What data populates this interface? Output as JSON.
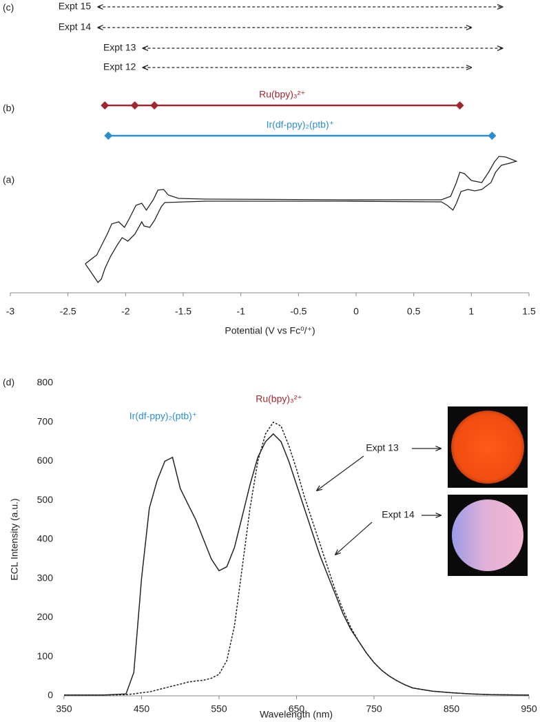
{
  "chart_data": [
    {
      "type": "potential",
      "panel_labels": [
        "(c)",
        "(b)",
        "(a)"
      ],
      "xlabel": "Potential (V vs Fc⁰/⁺)",
      "xlim": [
        -3,
        1.5
      ],
      "xticks": [
        -3,
        -2.5,
        -2,
        -1.5,
        -1,
        -0.5,
        0,
        0.5,
        1,
        1.5
      ],
      "windows": [
        {
          "name": "Expt 15",
          "start": -2.24,
          "end": 1.27
        },
        {
          "name": "Expt 14",
          "start": -2.24,
          "end": 1.0
        },
        {
          "name": "Expt 13",
          "start": -1.85,
          "end": 1.27
        },
        {
          "name": "Expt 12",
          "start": -1.85,
          "end": 1.0
        }
      ],
      "potentials": [
        {
          "name": "Ru(bpy)₃²⁺",
          "color": "#a0262f",
          "values": [
            -2.18,
            -1.92,
            -1.75,
            0.9
          ]
        },
        {
          "name": "Ir(df-ppy)₂(ptb)⁺",
          "color": "#2a8fd0",
          "values": [
            -2.15,
            1.18
          ]
        }
      ],
      "cv": {
        "ylim": [
          0,
          200
        ],
        "color": "#222222",
        "x": [
          -2.35,
          -2.25,
          -2.16,
          -2.12,
          -2.06,
          -2.01,
          -1.97,
          -1.91,
          -1.86,
          -1.82,
          -1.76,
          -1.72,
          -1.67,
          -1.63,
          -1.54,
          -1.3,
          -0.1,
          0.74,
          0.82,
          0.87,
          0.9,
          0.94,
          1.0,
          1.09,
          1.15,
          1.2,
          1.24,
          1.3,
          1.39,
          1.33,
          1.26,
          1.21,
          1.17,
          1.09,
          1.03,
          0.97,
          0.91,
          0.87,
          0.84,
          0.79,
          0.74,
          -0.1,
          -1.3,
          -1.66,
          -1.69,
          -1.75,
          -1.79,
          -1.84,
          -1.86,
          -1.92,
          -1.98,
          -2.03,
          -2.07,
          -2.13,
          -2.18,
          -2.21,
          -2.24,
          -2.28,
          -2.35
        ],
        "y": [
          27,
          40,
          70,
          85,
          88,
          80,
          92,
          112,
          115,
          105,
          120,
          134,
          135,
          127,
          122,
          121,
          120,
          120,
          125,
          145,
          160,
          158,
          148,
          145,
          160,
          175,
          183,
          182,
          176,
          173,
          170,
          160,
          145,
          135,
          133,
          135,
          132,
          115,
          105,
          112,
          117,
          118,
          118,
          116,
          110,
          90,
          80,
          82,
          88,
          70,
          60,
          65,
          55,
          38,
          20,
          5,
          0,
          10,
          27
        ]
      }
    },
    {
      "type": "line",
      "panel_label": "(d)",
      "xlabel": "Wavelength (nm)",
      "ylabel": "ECL Intensity (a.u.)",
      "xlim": [
        350,
        950
      ],
      "xticks": [
        350,
        450,
        550,
        650,
        750,
        850,
        950
      ],
      "ylim": [
        0,
        800
      ],
      "yticks": [
        0,
        100,
        200,
        300,
        400,
        500,
        600,
        700,
        800
      ],
      "x": [
        350,
        400,
        430,
        440,
        450,
        460,
        470,
        480,
        490,
        500,
        510,
        520,
        530,
        540,
        550,
        560,
        570,
        580,
        590,
        600,
        610,
        620,
        630,
        640,
        650,
        660,
        670,
        680,
        690,
        700,
        710,
        720,
        730,
        740,
        750,
        760,
        770,
        780,
        790,
        800,
        825,
        850,
        875,
        900,
        950
      ],
      "series": [
        {
          "name": "Expt 13",
          "color": "#222222",
          "line_style": "solid",
          "values": [
            2,
            2,
            5,
            60,
            300,
            480,
            550,
            600,
            610,
            530,
            490,
            450,
            400,
            350,
            320,
            330,
            380,
            460,
            540,
            610,
            650,
            670,
            650,
            600,
            540,
            480,
            420,
            360,
            310,
            260,
            210,
            170,
            140,
            110,
            85,
            65,
            50,
            38,
            28,
            20,
            12,
            8,
            5,
            3,
            2
          ]
        },
        {
          "name": "Expt 14",
          "color": "#222222",
          "line_style": "dashed",
          "values": [
            2,
            2,
            3,
            5,
            8,
            10,
            15,
            20,
            25,
            30,
            35,
            38,
            40,
            45,
            55,
            90,
            180,
            330,
            480,
            600,
            670,
            700,
            690,
            640,
            580,
            510,
            450,
            390,
            330,
            270,
            220,
            175,
            140,
            110,
            85,
            65,
            50,
            38,
            28,
            20,
            12,
            8,
            5,
            3,
            2
          ]
        }
      ],
      "annotations": [
        {
          "text": "Ir(df-ppy)₂(ptb)⁺",
          "color": "#2a8fd0"
        },
        {
          "text": "Ru(bpy)₃²⁺",
          "color": "#a0262f"
        }
      ]
    }
  ]
}
